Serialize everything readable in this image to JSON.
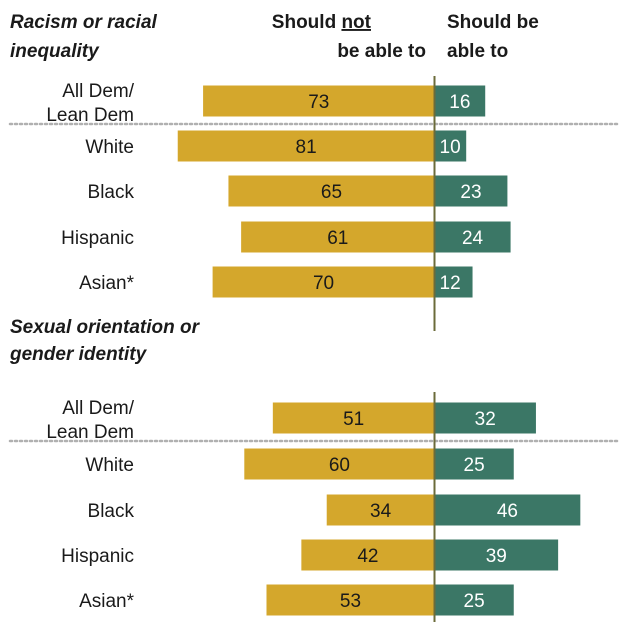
{
  "chart_data": {
    "type": "bar",
    "orientation": "horizontal-diverging",
    "columns": {
      "left_line1_pre": "Should ",
      "left_line1_underlined": "not",
      "left_line2": "be able to",
      "right_line1": "Should be",
      "right_line2": "able to"
    },
    "colors": {
      "left": "#d4a72c",
      "right": "#3b7766",
      "divider": "#6b6b3a",
      "separator": "#b0b0b0"
    },
    "sections": [
      {
        "title_lines": [
          "Racism or racial",
          "inequality"
        ],
        "rows": [
          {
            "label_lines": [
              "All Dem/",
              "Lean Dem"
            ],
            "left": 73,
            "right": 16,
            "left_label": "73",
            "right_label": "16",
            "separator_after": true
          },
          {
            "label_lines": [
              "White"
            ],
            "left": 81,
            "right": 10,
            "left_label": "81",
            "right_label": "10"
          },
          {
            "label_lines": [
              "Black"
            ],
            "left": 65,
            "right": 23,
            "left_label": "65",
            "right_label": "23"
          },
          {
            "label_lines": [
              "Hispanic"
            ],
            "left": 61,
            "right": 24,
            "left_label": "61",
            "right_label": "24"
          },
          {
            "label_lines": [
              "Asian*"
            ],
            "left": 70,
            "right": 12,
            "left_label": "70",
            "right_label": "12"
          }
        ]
      },
      {
        "title_lines": [
          "Sexual orientation or",
          "gender identity"
        ],
        "rows": [
          {
            "label_lines": [
              "All Dem/",
              "Lean Dem"
            ],
            "left": 51,
            "right": 32,
            "left_label": "51",
            "right_label": "32",
            "separator_after": true
          },
          {
            "label_lines": [
              "White"
            ],
            "left": 60,
            "right": 25,
            "left_label": "60",
            "right_label": "25"
          },
          {
            "label_lines": [
              "Black"
            ],
            "left": 34,
            "right": 46,
            "left_label": "34",
            "right_label": "46"
          },
          {
            "label_lines": [
              "Hispanic"
            ],
            "left": 42,
            "right": 39,
            "left_label": "42",
            "right_label": "39"
          },
          {
            "label_lines": [
              "Asian*"
            ],
            "left": 53,
            "right": 25,
            "left_label": "53",
            "right_label": "25"
          }
        ]
      }
    ]
  }
}
